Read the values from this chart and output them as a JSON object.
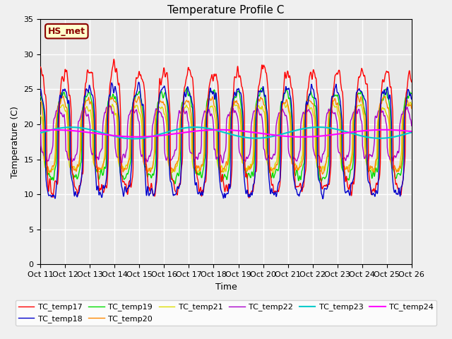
{
  "title": "Temperature Profile C",
  "xlabel": "Time",
  "ylabel": "Temperature (C)",
  "ylim": [
    0,
    35
  ],
  "xtick_labels": [
    "Oct 11",
    "Oct 12",
    "Oct 13",
    "Oct 14",
    "Oct 15",
    "Oct 16",
    "Oct 17",
    "Oct 18",
    "Oct 19",
    "Oct 20",
    "Oct 21",
    "Oct 22",
    "Oct 23",
    "Oct 24",
    "Oct 25",
    "Oct 26"
  ],
  "series_colors": {
    "TC_temp17": "#ff0000",
    "TC_temp18": "#0000cc",
    "TC_temp19": "#00dd00",
    "TC_temp20": "#ff8800",
    "TC_temp21": "#dddd00",
    "TC_temp22": "#aa00cc",
    "TC_temp23": "#00cccc",
    "TC_temp24": "#ff00ff"
  },
  "annotation_text": "HS_met",
  "annotation_color": "#8B0000",
  "annotation_bg": "#ffffcc",
  "background_color": "#e8e8e8",
  "grid_color": "#ffffff",
  "figsize": [
    6.4,
    4.8
  ],
  "dpi": 100
}
